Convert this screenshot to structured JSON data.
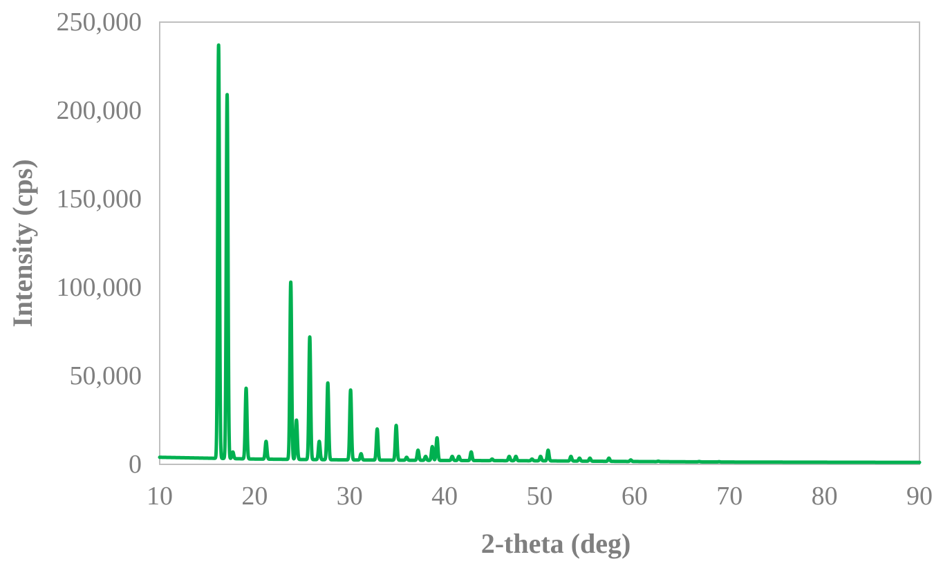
{
  "chart_data": {
    "type": "line",
    "title": "",
    "xlabel": "2-theta (deg)",
    "ylabel": "Intensity (cps)",
    "xlim": [
      10,
      90
    ],
    "ylim": [
      0,
      250000
    ],
    "x_ticks": [
      10,
      20,
      30,
      40,
      50,
      60,
      70,
      80,
      90
    ],
    "y_ticks": [
      0,
      50000,
      100000,
      150000,
      200000,
      250000
    ],
    "y_tick_labels": [
      "0",
      "50,000",
      "100,000",
      "150,000",
      "200,000",
      "250,000"
    ],
    "grid": false,
    "legend": "none",
    "series": [
      {
        "color": "#00b050",
        "baseline": [
          [
            10,
            4000
          ],
          [
            15,
            3500
          ],
          [
            20,
            3000
          ],
          [
            30,
            2500
          ],
          [
            40,
            2200
          ],
          [
            50,
            2000
          ],
          [
            60,
            1600
          ],
          [
            70,
            1300
          ],
          [
            80,
            1200
          ],
          [
            90,
            1100
          ]
        ],
        "peaks": [
          [
            16.2,
            237000
          ],
          [
            17.1,
            209000
          ],
          [
            17.7,
            7000
          ],
          [
            19.1,
            43000
          ],
          [
            21.2,
            13000
          ],
          [
            23.8,
            103000
          ],
          [
            24.4,
            25000
          ],
          [
            26.8,
            13000
          ],
          [
            25.8,
            72000
          ],
          [
            27.7,
            46000
          ],
          [
            30.1,
            42000
          ],
          [
            31.2,
            6000
          ],
          [
            32.9,
            20000
          ],
          [
            34.9,
            22000
          ],
          [
            36.0,
            4000
          ],
          [
            37.2,
            8000
          ],
          [
            38.0,
            4500
          ],
          [
            38.7,
            10000
          ],
          [
            39.2,
            15000
          ],
          [
            40.8,
            4500
          ],
          [
            41.5,
            4500
          ],
          [
            42.8,
            7000
          ],
          [
            45.0,
            3000
          ],
          [
            46.8,
            4500
          ],
          [
            47.5,
            4500
          ],
          [
            49.2,
            3000
          ],
          [
            50.1,
            4500
          ],
          [
            50.9,
            8000
          ],
          [
            53.3,
            4500
          ],
          [
            54.2,
            3500
          ],
          [
            55.3,
            3500
          ],
          [
            57.3,
            3500
          ],
          [
            59.6,
            2500
          ],
          [
            62.5,
            1800
          ],
          [
            66.8,
            1600
          ],
          [
            68.9,
            1500
          ]
        ]
      }
    ]
  }
}
